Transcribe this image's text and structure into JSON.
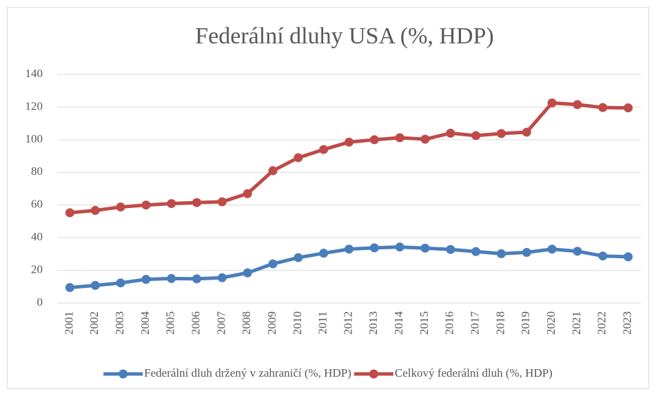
{
  "chart_data": {
    "type": "line",
    "title": "Federální dluhy USA (%, HDP)",
    "categories": [
      "2001",
      "2002",
      "2003",
      "2004",
      "2005",
      "2006",
      "2007",
      "2008",
      "2009",
      "2010",
      "2011",
      "2012",
      "2013",
      "2014",
      "2015",
      "2016",
      "2017",
      "2018",
      "2019",
      "2020",
      "2021",
      "2022",
      "2023"
    ],
    "series": [
      {
        "name": "Federální dluh držený v zahraničí (%, HDP)",
        "color": "#4a7ebb",
        "values": [
          9.5,
          10.8,
          12.3,
          14.5,
          15,
          14.8,
          15.5,
          18.5,
          24,
          27.8,
          30.5,
          33,
          33.8,
          34.3,
          33.6,
          32.8,
          31.5,
          30.2,
          31,
          33,
          31.7,
          28.8,
          28.3
        ]
      },
      {
        "name": "Celkový federální dluh (%, HDP)",
        "color": "#be4b48",
        "values": [
          55.3,
          56.7,
          58.8,
          60,
          60.9,
          61.5,
          62,
          67,
          81,
          89,
          94,
          98.5,
          100,
          101.2,
          100.3,
          104,
          102.5,
          103.8,
          104.6,
          122.5,
          121.5,
          119.7,
          119.5
        ]
      }
    ],
    "ylim": [
      0,
      140
    ],
    "yticks": [
      0,
      20,
      40,
      60,
      80,
      100,
      120,
      140
    ],
    "grid": true,
    "legend": "bottom"
  }
}
